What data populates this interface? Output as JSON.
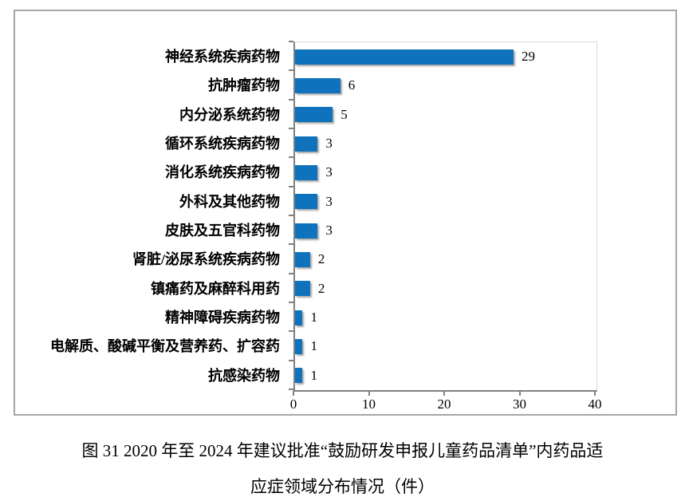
{
  "chart_data": {
    "type": "bar",
    "orientation": "horizontal",
    "title": "",
    "categories": [
      "神经系统疾病药物",
      "抗肿瘤药物",
      "内分泌系统药物",
      "循环系统疾病药物",
      "消化系统疾病药物",
      "外科及其他药物",
      "皮肤及五官科药物",
      "肾脏/泌尿系统疾病药物",
      "镇痛药及麻醉科用药",
      "精神障碍疾病药物",
      "电解质、酸碱平衡及营养药、扩容药",
      "抗感染药物"
    ],
    "values": [
      29,
      6,
      5,
      3,
      3,
      3,
      3,
      2,
      2,
      1,
      1,
      1
    ],
    "data_labels": [
      "29",
      "6",
      "5",
      "3",
      "3",
      "3",
      "3",
      "2",
      "2",
      "1",
      "1",
      "1"
    ],
    "xlabel": "",
    "ylabel": "",
    "xlim": [
      0,
      40
    ],
    "xticks": [
      "0",
      "10",
      "20",
      "30",
      "40"
    ],
    "grid": false,
    "legend": false,
    "bar_color": "#0F72BC",
    "axis_color": "#7f7f7f",
    "frame_border_color": "#a6a6a6"
  },
  "caption": {
    "line1": "图 31  2020 年至 2024 年建议批准“鼓励研发申报儿童药品清单”内药品适",
    "line2": "应症领域分布情况（件）"
  }
}
